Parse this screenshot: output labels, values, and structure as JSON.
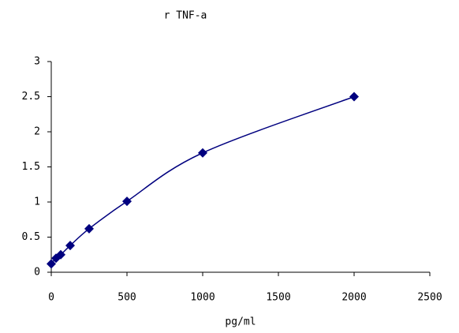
{
  "chart_data": {
    "type": "scatter",
    "title": "r TNF-a",
    "x_label": "pg/ml",
    "x": [
      0,
      31.25,
      62.5,
      125,
      250,
      500,
      1000,
      2000
    ],
    "values": [
      0.12,
      0.2,
      0.25,
      0.38,
      0.62,
      1.01,
      1.7,
      2.5
    ],
    "color": "#00007f",
    "line": true,
    "grid": false,
    "xlim": [
      0,
      2500
    ],
    "xticks": [
      0,
      500,
      1000,
      1500,
      2000,
      2500
    ],
    "ylim": [
      0,
      3
    ],
    "yticks": [
      0,
      0.5,
      1,
      1.5,
      2,
      2.5,
      3
    ]
  }
}
